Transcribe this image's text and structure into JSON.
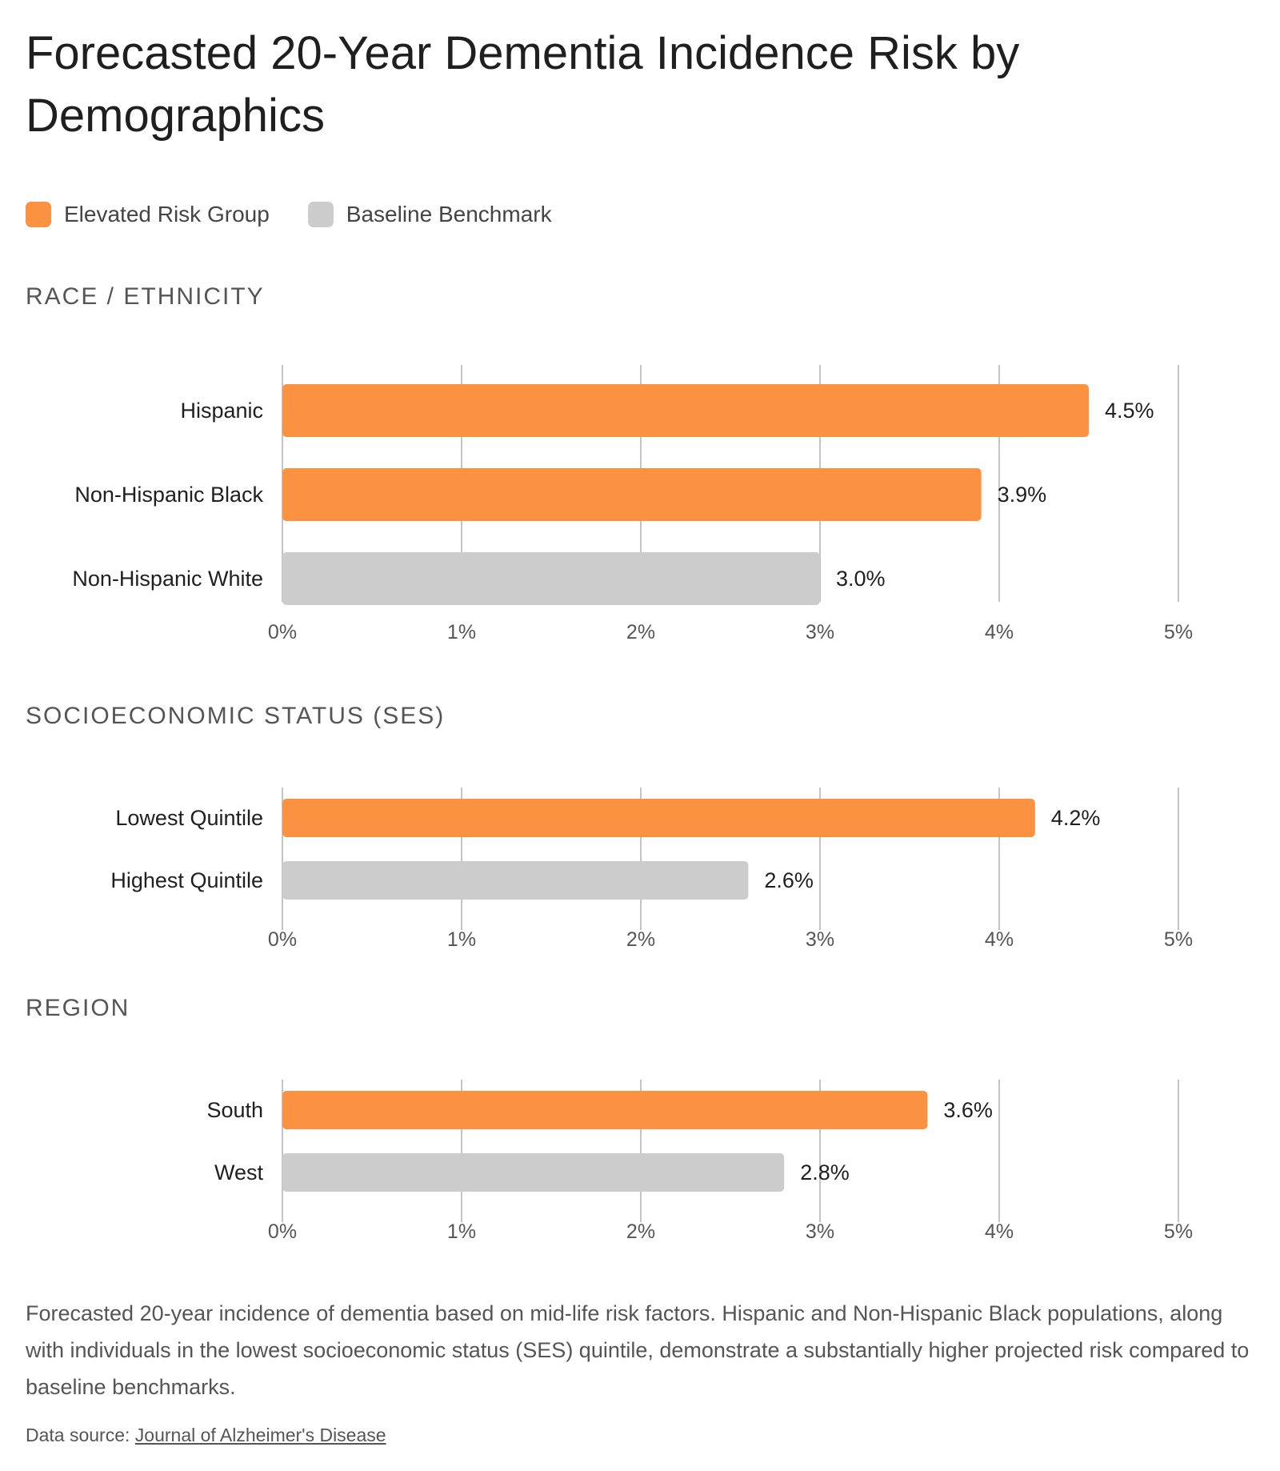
{
  "title": "Forecasted 20-Year Dementia Incidence Risk by Demographics",
  "legend": [
    {
      "label": "Elevated Risk Group",
      "color": "#fa9242"
    },
    {
      "label": "Baseline Benchmark",
      "color": "#cccccc"
    }
  ],
  "chart_data": [
    {
      "type": "bar",
      "orientation": "horizontal",
      "section_title": "RACE / ETHNICITY",
      "categories": [
        "Hispanic",
        "Non-Hispanic Black",
        "Non-Hispanic White"
      ],
      "values": [
        4.5,
        3.9,
        3.0
      ],
      "value_labels": [
        "4.5%",
        "3.9%",
        "3.0%"
      ],
      "groups": [
        "Elevated Risk Group",
        "Elevated Risk Group",
        "Baseline Benchmark"
      ],
      "xlim": [
        0,
        5
      ],
      "xticks": [
        "0%",
        "1%",
        "2%",
        "3%",
        "4%",
        "5%"
      ],
      "grid": true
    },
    {
      "type": "bar",
      "orientation": "horizontal",
      "section_title": "SOCIOECONOMIC STATUS (SES)",
      "categories": [
        "Lowest Quintile",
        "Highest Quintile"
      ],
      "values": [
        4.2,
        2.6
      ],
      "value_labels": [
        "4.2%",
        "2.6%"
      ],
      "groups": [
        "Elevated Risk Group",
        "Baseline Benchmark"
      ],
      "xlim": [
        0,
        5
      ],
      "xticks": [
        "0%",
        "1%",
        "2%",
        "3%",
        "4%",
        "5%"
      ],
      "grid": true
    },
    {
      "type": "bar",
      "orientation": "horizontal",
      "section_title": "REGION",
      "categories": [
        "South",
        "West"
      ],
      "values": [
        3.6,
        2.8
      ],
      "value_labels": [
        "3.6%",
        "2.8%"
      ],
      "groups": [
        "Elevated Risk Group",
        "Baseline Benchmark"
      ],
      "xlim": [
        0,
        5
      ],
      "xticks": [
        "0%",
        "1%",
        "2%",
        "3%",
        "4%",
        "5%"
      ],
      "grid": true
    }
  ],
  "caption": "Forecasted 20-year incidence of dementia based on mid-life risk factors. Hispanic and Non-Hispanic Black populations, along with individuals in the lowest socioeconomic status (SES) quintile, demonstrate a substantially higher projected risk compared to baseline benchmarks.",
  "source": {
    "prefix": "Data source:",
    "link_text": "Journal of Alzheimer's Disease"
  }
}
